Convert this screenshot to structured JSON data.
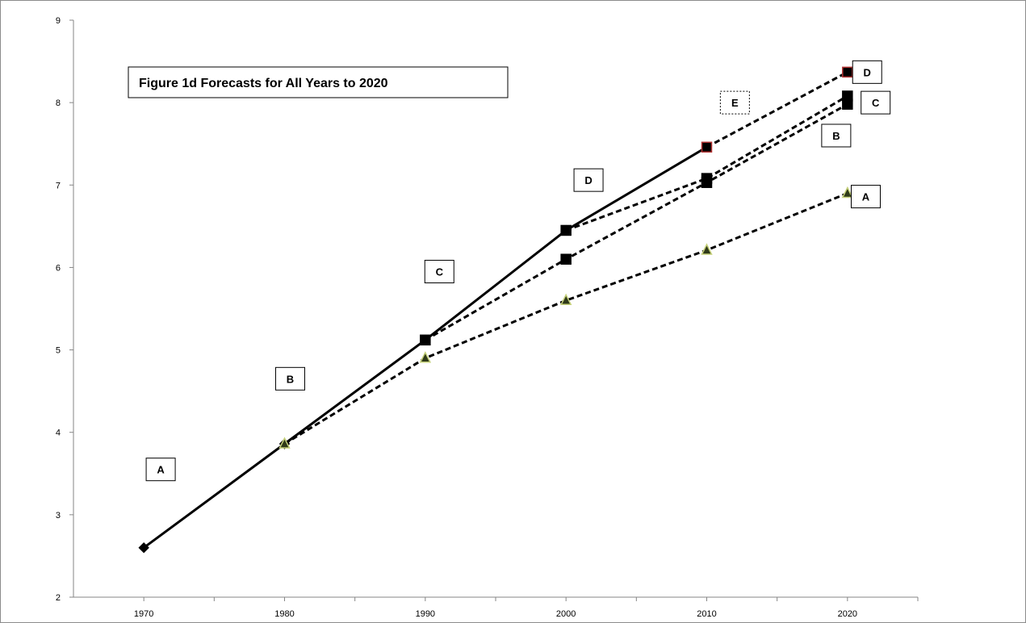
{
  "chart_data": {
    "type": "line",
    "title": "Figure 1d Forecasts for All Years to 2020",
    "xlabel": "",
    "ylabel": "",
    "xlim": [
      1965,
      2025
    ],
    "ylim": [
      2,
      9
    ],
    "x_ticks": [
      1970,
      1980,
      1990,
      2000,
      2010,
      2020
    ],
    "y_ticks": [
      2,
      3,
      4,
      5,
      6,
      7,
      8,
      9
    ],
    "grid": false,
    "legend": "none",
    "series": [
      {
        "style": "solid",
        "marker": "diamond",
        "color": "#000000",
        "x": [
          1970,
          1980,
          1990,
          2000,
          2010
        ],
        "y": [
          2.6,
          3.86,
          5.12,
          6.45,
          7.46
        ]
      },
      {
        "style": "dashed",
        "marker": "triangle",
        "color": "#000000",
        "marker_fill": "#2f3a1a",
        "marker_stroke": "#c5d07a",
        "x": [
          1980,
          1990,
          2000,
          2010,
          2020
        ],
        "y": [
          3.86,
          4.9,
          5.6,
          6.21,
          6.9
        ]
      },
      {
        "style": "dashed",
        "marker": "square",
        "color": "#000000",
        "x": [
          1990,
          2000,
          2010,
          2020
        ],
        "y": [
          5.12,
          6.1,
          7.03,
          7.98
        ]
      },
      {
        "style": "dashed",
        "marker": "square",
        "color": "#000000",
        "x": [
          2000,
          2010,
          2020
        ],
        "y": [
          6.45,
          7.08,
          8.08
        ]
      },
      {
        "style": "dashed",
        "marker": "square",
        "color": "#000000",
        "marker_stroke": "#b03030",
        "x": [
          2010,
          2020
        ],
        "y": [
          7.46,
          8.37
        ]
      }
    ],
    "annotations": [
      {
        "text": "A",
        "x": 1971.2,
        "y": 3.55,
        "border": "solid"
      },
      {
        "text": "B",
        "x": 1980.4,
        "y": 4.65,
        "border": "solid"
      },
      {
        "text": "C",
        "x": 1991.0,
        "y": 5.95,
        "border": "solid"
      },
      {
        "text": "D",
        "x": 2001.6,
        "y": 7.06,
        "border": "solid"
      },
      {
        "text": "E",
        "x": 2012.0,
        "y": 8.0,
        "border": "dashed"
      },
      {
        "text": "D",
        "x": 2021.4,
        "y": 8.37,
        "border": "solid"
      },
      {
        "text": "C",
        "x": 2022.0,
        "y": 8.0,
        "border": "solid"
      },
      {
        "text": "B",
        "x": 2019.2,
        "y": 7.6,
        "border": "solid"
      },
      {
        "text": "A",
        "x": 2021.3,
        "y": 6.86,
        "border": "solid"
      }
    ],
    "colors": {
      "axis": "#868686",
      "line": "#000000",
      "frame": "#8c8c8c",
      "background": "#ffffff"
    }
  }
}
